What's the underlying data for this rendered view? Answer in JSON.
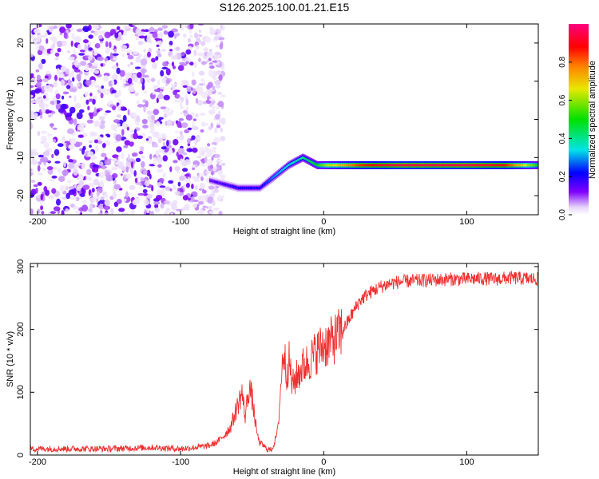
{
  "figure_title": "S126.2025.100.01.21.E15",
  "chart_data": [
    {
      "type": "heatmap",
      "xlabel": "Height of straight line (km)",
      "ylabel": "Frequency (Hz)",
      "xlim": [
        -205,
        150
      ],
      "ylim": [
        -25,
        25
      ],
      "x_ticks": [
        -200,
        -100,
        0,
        100
      ],
      "x_tick_labels": [
        "-200",
        "-100",
        "0",
        "100"
      ],
      "y_ticks": [
        20,
        10,
        0,
        -10,
        -20
      ],
      "y_tick_labels": [
        "20",
        "10",
        "0",
        "-10",
        "-20"
      ],
      "colorbar": {
        "label": "Normalized spectral amplitude",
        "range": [
          0,
          1
        ],
        "ticks": [
          0.0,
          0.2,
          0.4,
          0.6,
          0.8
        ],
        "tick_labels": [
          "0.0",
          "0.2",
          "0.4",
          "0.6",
          "0.8"
        ],
        "colormap": [
          "#ffffff",
          "#d9bff7",
          "#8000ff",
          "#0000ff",
          "#00e5e5",
          "#00e000",
          "#e8e800",
          "#ff8000",
          "#ff0000",
          "#ff0080"
        ]
      },
      "noise_region_x": [
        -205,
        -80
      ],
      "dominant_line": {
        "x": [
          -80,
          -60,
          -45,
          -35,
          -25,
          -15,
          -5,
          0,
          25,
          50,
          75,
          100,
          125,
          150
        ],
        "frequency": [
          -16,
          -18,
          -18,
          -15,
          -12,
          -10,
          -12,
          -12,
          -12,
          -12,
          -12,
          -12,
          -12,
          -12
        ],
        "amplitude": [
          0.15,
          0.2,
          0.2,
          0.3,
          0.35,
          0.4,
          0.5,
          0.6,
          0.85,
          0.95,
          0.95,
          0.95,
          0.9,
          0.5
        ]
      }
    },
    {
      "type": "line",
      "xlabel": "Height of straight line (km)",
      "ylabel": "SNR (10 * v/v)",
      "xlim": [
        -205,
        150
      ],
      "ylim": [
        0,
        305
      ],
      "x_ticks": [
        -200,
        -100,
        0,
        100
      ],
      "x_tick_labels": [
        "-200",
        "-100",
        "0",
        "100"
      ],
      "y_ticks": [
        0,
        100,
        200,
        300
      ],
      "y_tick_labels": [
        "0",
        "100",
        "200",
        "300"
      ],
      "line_color": "#f03030",
      "series": [
        {
          "x": [
            -205,
            -180,
            -150,
            -120,
            -100,
            -90,
            -80,
            -75,
            -70,
            -65,
            -60,
            -57,
            -55,
            -52,
            -50,
            -47,
            -45,
            -42,
            -40,
            -37,
            -35,
            -32,
            -30,
            -28,
            -26,
            -24,
            -22,
            -20,
            -15,
            -10,
            -5,
            0,
            5,
            10,
            15,
            20,
            25,
            30,
            35,
            40,
            45,
            50,
            60,
            70,
            80,
            90,
            100,
            110,
            120,
            130,
            140,
            150
          ],
          "values": [
            10,
            10,
            10,
            12,
            10,
            12,
            15,
            20,
            30,
            45,
            80,
            100,
            60,
            110,
            90,
            40,
            20,
            15,
            10,
            8,
            15,
            40,
            110,
            170,
            130,
            150,
            110,
            120,
            140,
            150,
            165,
            175,
            180,
            190,
            205,
            225,
            245,
            255,
            262,
            268,
            272,
            275,
            277,
            278,
            279,
            280,
            280,
            281,
            280,
            282,
            281,
            280
          ]
        }
      ]
    }
  ]
}
